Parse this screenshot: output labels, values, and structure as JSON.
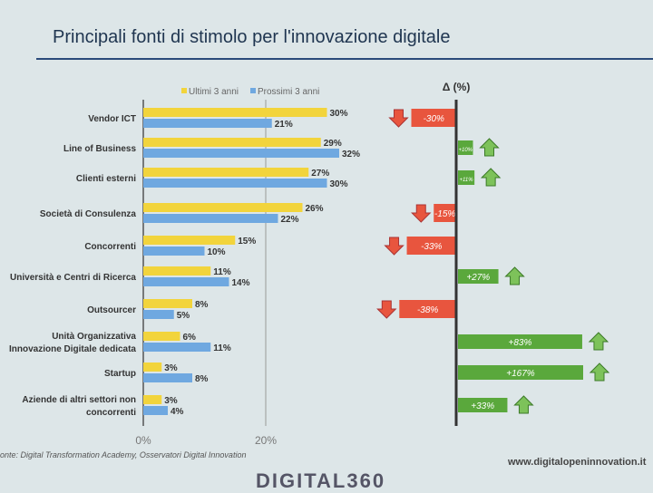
{
  "title": "Principali fonti di stimolo per l'innovazione digitale",
  "source": "onte: Digital Transformation Academy, Osservatori Digital Innovation",
  "url": "www.digitalopeninnovation.it",
  "logo": "DIGITAL360",
  "colors": {
    "ultimi": "#f2d43c",
    "prossimi": "#6fa8e0",
    "down": "#e8553e",
    "up": "#5aa83c"
  },
  "chart_data": [
    {
      "type": "bar",
      "orientation": "horizontal",
      "xlim": [
        0,
        35
      ],
      "xticks": [
        "0%",
        "20%"
      ],
      "categories": [
        "Vendor ICT",
        "Line of Business",
        "Clienti esterni",
        "Società di Consulenza",
        "Concorrenti",
        "Università e Centri di Ricerca",
        "Outsourcer",
        "Unità Organizzativa Innovazione Digitale dedicata",
        "Startup",
        "Aziende di altri settori non concorrenti"
      ],
      "series": [
        {
          "name": "Ultimi 3 anni",
          "values": [
            30,
            29,
            27,
            26,
            15,
            11,
            8,
            6,
            3,
            3
          ]
        },
        {
          "name": "Prossimi 3 anni",
          "values": [
            21,
            32,
            30,
            22,
            10,
            14,
            5,
            11,
            8,
            4
          ]
        }
      ]
    },
    {
      "type": "bar",
      "title": "Δ (%)",
      "values": [
        -30,
        10,
        11,
        -15,
        -33,
        27,
        -38,
        83,
        167,
        33
      ],
      "labels": [
        "-30%",
        "+10%",
        "+11%",
        "-15%",
        "-33%",
        "+27%",
        "-38%",
        "+83%",
        "+167%",
        "+33%"
      ]
    }
  ]
}
